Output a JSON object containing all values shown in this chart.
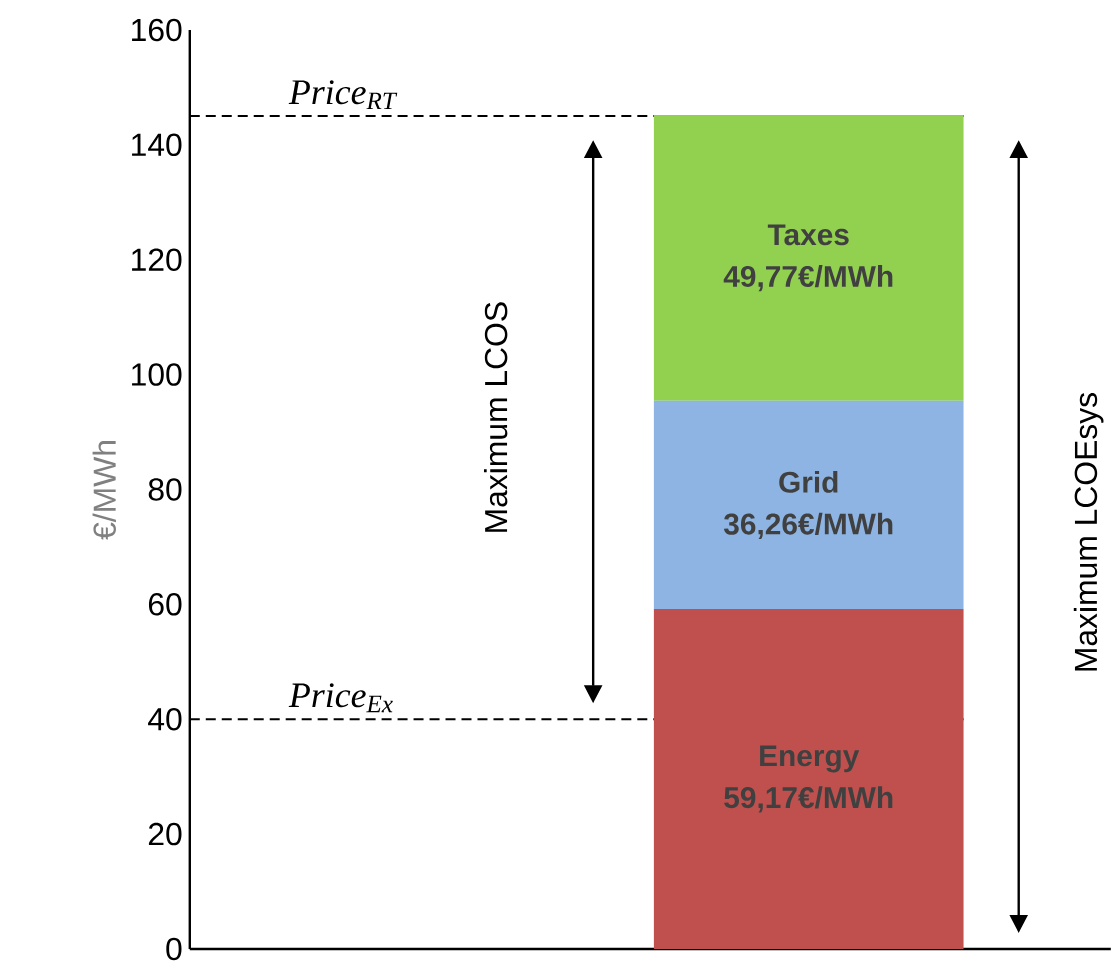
{
  "chart_data": {
    "type": "bar",
    "stacked": true,
    "ylabel": "€/MWh",
    "categories": [
      null
    ],
    "series": [
      {
        "name": "Energy",
        "color": "#c0504d",
        "values": [
          59.17
        ],
        "value_labels": [
          "59,17€/MWh"
        ]
      },
      {
        "name": "Grid",
        "color": "#8db4e2",
        "values": [
          36.26
        ],
        "value_labels": [
          "36,26€/MWh"
        ]
      },
      {
        "name": "Taxes",
        "color": "#92d050",
        "values": [
          49.77
        ],
        "value_labels": [
          "49,77€/MWh"
        ]
      }
    ],
    "ylim": [
      0,
      160
    ],
    "yticks": [
      0,
      20,
      40,
      60,
      80,
      100,
      120,
      140,
      160
    ],
    "ref_lines": [
      {
        "axis": "y",
        "value": 145,
        "label": "Price$_{RT}$",
        "line_style": "dashed",
        "color": "#000000"
      },
      {
        "axis": "y",
        "value": 40,
        "label": "Price$_{Ex}$",
        "line_style": "dashed",
        "color": "#000000"
      }
    ],
    "annotations": [
      "Maximum LCOS",
      "Maximum LCOEsys"
    ]
  }
}
